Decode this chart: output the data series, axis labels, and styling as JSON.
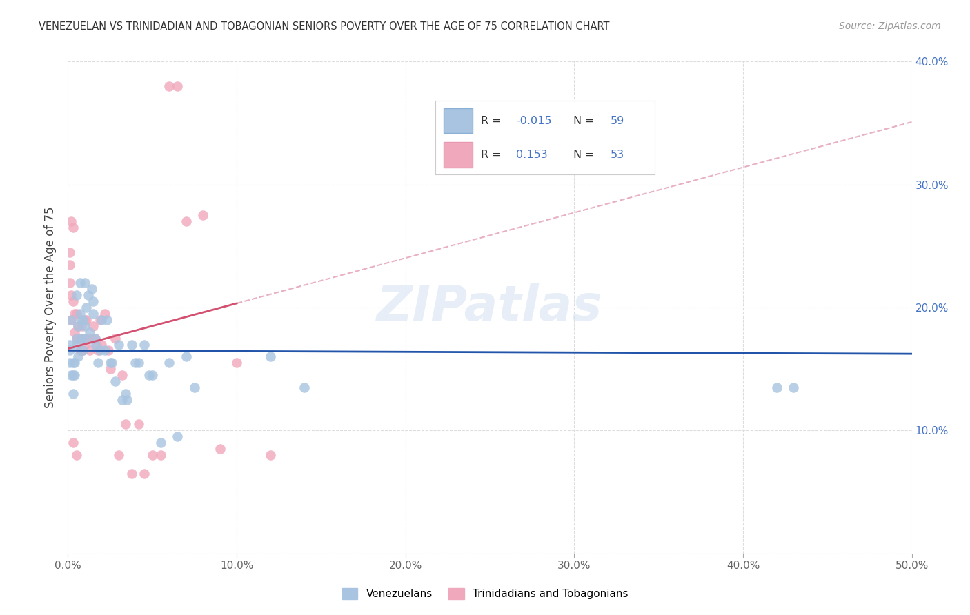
{
  "title": "VENEZUELAN VS TRINIDADIAN AND TOBAGONIAN SENIORS POVERTY OVER THE AGE OF 75 CORRELATION CHART",
  "source": "Source: ZipAtlas.com",
  "ylabel": "Seniors Poverty Over the Age of 75",
  "xlim": [
    0.0,
    0.5
  ],
  "ylim": [
    0.0,
    0.4
  ],
  "xticks": [
    0.0,
    0.1,
    0.2,
    0.3,
    0.4,
    0.5
  ],
  "xticklabels": [
    "0.0%",
    "10.0%",
    "20.0%",
    "30.0%",
    "40.0%",
    "50.0%"
  ],
  "yticks": [
    0.0,
    0.1,
    0.2,
    0.3,
    0.4
  ],
  "yticklabels_right": [
    "",
    "10.0%",
    "20.0%",
    "30.0%",
    "40.0%"
  ],
  "background_color": "#ffffff",
  "grid_color": "#dddddd",
  "venezuelan_color": "#a8c4e0",
  "trinidadian_color": "#f0a8bc",
  "venezuelan_line_color": "#2255aa",
  "trinidadian_line_color": "#d45070",
  "dashed_line_color": "#e8b0c4",
  "right_axis_color": "#4472c4",
  "R_venezuelan": -0.015,
  "N_venezuelan": 59,
  "R_trinidadian": 0.153,
  "N_trinidadian": 53,
  "venezuelan_x": [
    0.001,
    0.001,
    0.001,
    0.002,
    0.002,
    0.003,
    0.003,
    0.003,
    0.004,
    0.004,
    0.005,
    0.005,
    0.005,
    0.006,
    0.006,
    0.007,
    0.007,
    0.008,
    0.008,
    0.009,
    0.009,
    0.01,
    0.01,
    0.01,
    0.011,
    0.012,
    0.013,
    0.014,
    0.015,
    0.015,
    0.016,
    0.016,
    0.018,
    0.019,
    0.02,
    0.022,
    0.023,
    0.025,
    0.026,
    0.028,
    0.03,
    0.032,
    0.034,
    0.035,
    0.038,
    0.04,
    0.042,
    0.045,
    0.048,
    0.05,
    0.055,
    0.06,
    0.065,
    0.07,
    0.075,
    0.12,
    0.14,
    0.42,
    0.43
  ],
  "venezuelan_y": [
    0.155,
    0.165,
    0.17,
    0.145,
    0.19,
    0.13,
    0.145,
    0.155,
    0.145,
    0.155,
    0.17,
    0.175,
    0.21,
    0.16,
    0.185,
    0.195,
    0.22,
    0.175,
    0.19,
    0.165,
    0.19,
    0.175,
    0.185,
    0.22,
    0.2,
    0.21,
    0.18,
    0.215,
    0.195,
    0.205,
    0.175,
    0.17,
    0.155,
    0.165,
    0.19,
    0.165,
    0.19,
    0.155,
    0.155,
    0.14,
    0.17,
    0.125,
    0.13,
    0.125,
    0.17,
    0.155,
    0.155,
    0.17,
    0.145,
    0.145,
    0.09,
    0.155,
    0.095,
    0.16,
    0.135,
    0.16,
    0.135,
    0.135,
    0.135
  ],
  "trinidadian_x": [
    0.001,
    0.001,
    0.002,
    0.002,
    0.003,
    0.003,
    0.004,
    0.004,
    0.005,
    0.005,
    0.006,
    0.006,
    0.007,
    0.007,
    0.008,
    0.008,
    0.009,
    0.009,
    0.01,
    0.01,
    0.011,
    0.012,
    0.013,
    0.014,
    0.015,
    0.016,
    0.017,
    0.018,
    0.019,
    0.02,
    0.022,
    0.024,
    0.025,
    0.028,
    0.03,
    0.032,
    0.034,
    0.038,
    0.042,
    0.045,
    0.05,
    0.055,
    0.06,
    0.065,
    0.07,
    0.08,
    0.09,
    0.1,
    0.12,
    0.001,
    0.002,
    0.003,
    0.005
  ],
  "trinidadian_y": [
    0.245,
    0.22,
    0.27,
    0.21,
    0.265,
    0.205,
    0.195,
    0.18,
    0.195,
    0.175,
    0.185,
    0.175,
    0.175,
    0.165,
    0.185,
    0.165,
    0.175,
    0.165,
    0.19,
    0.17,
    0.19,
    0.175,
    0.165,
    0.175,
    0.185,
    0.175,
    0.17,
    0.165,
    0.19,
    0.17,
    0.195,
    0.165,
    0.15,
    0.175,
    0.08,
    0.145,
    0.105,
    0.065,
    0.105,
    0.065,
    0.08,
    0.08,
    0.38,
    0.38,
    0.27,
    0.275,
    0.085,
    0.155,
    0.08,
    0.235,
    0.19,
    0.09,
    0.08
  ]
}
